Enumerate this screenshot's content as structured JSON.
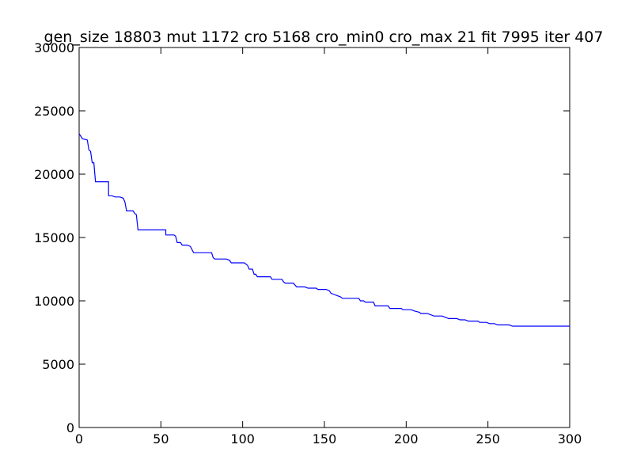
{
  "chart_data": {
    "type": "line",
    "title": "gen_size 18803 mut 1172 cro 5168 cro_min0 cro_max 21 fit 7995 iter 407",
    "xlabel": "",
    "ylabel": "",
    "xlim": [
      0,
      300
    ],
    "ylim": [
      0,
      30000
    ],
    "grid": false,
    "x_ticks": [
      "0",
      "50",
      "100",
      "150",
      "200",
      "250",
      "300"
    ],
    "y_ticks": [
      "0",
      "5000",
      "10000",
      "15000",
      "20000",
      "25000",
      "30000"
    ],
    "series": [
      {
        "color": "#0000ff",
        "step_points": [
          [
            0,
            23200
          ],
          [
            1,
            23000
          ],
          [
            2,
            22800
          ],
          [
            5,
            22700
          ],
          [
            6,
            21900
          ],
          [
            7,
            21800
          ],
          [
            8,
            20900
          ],
          [
            9,
            20900
          ],
          [
            10,
            19400
          ],
          [
            18,
            19400
          ],
          [
            18,
            18300
          ],
          [
            20,
            18300
          ],
          [
            22,
            18200
          ],
          [
            25,
            18200
          ],
          [
            27,
            18100
          ],
          [
            28,
            17800
          ],
          [
            29,
            17100
          ],
          [
            33,
            17100
          ],
          [
            34,
            16900
          ],
          [
            35,
            16800
          ],
          [
            36,
            15600
          ],
          [
            53,
            15600
          ],
          [
            53,
            15200
          ],
          [
            58,
            15200
          ],
          [
            59,
            15100
          ],
          [
            60,
            14600
          ],
          [
            62,
            14600
          ],
          [
            63,
            14400
          ],
          [
            66,
            14400
          ],
          [
            68,
            14300
          ],
          [
            70,
            13800
          ],
          [
            81,
            13800
          ],
          [
            82,
            13400
          ],
          [
            83,
            13300
          ],
          [
            90,
            13300
          ],
          [
            92,
            13200
          ],
          [
            93,
            13000
          ],
          [
            101,
            13000
          ],
          [
            102,
            12900
          ],
          [
            103,
            12800
          ],
          [
            104,
            12500
          ],
          [
            106,
            12500
          ],
          [
            107,
            12100
          ],
          [
            108,
            12100
          ],
          [
            109,
            11900
          ],
          [
            117,
            11900
          ],
          [
            118,
            11700
          ],
          [
            124,
            11700
          ],
          [
            125,
            11500
          ],
          [
            126,
            11400
          ],
          [
            131,
            11400
          ],
          [
            133,
            11100
          ],
          [
            138,
            11100
          ],
          [
            140,
            11000
          ],
          [
            145,
            11000
          ],
          [
            146,
            10900
          ],
          [
            151,
            10900
          ],
          [
            153,
            10800
          ],
          [
            154,
            10600
          ],
          [
            156,
            10500
          ],
          [
            158,
            10400
          ],
          [
            160,
            10300
          ],
          [
            161,
            10200
          ],
          [
            171,
            10200
          ],
          [
            172,
            10000
          ],
          [
            174,
            10000
          ],
          [
            175,
            9900
          ],
          [
            180,
            9900
          ],
          [
            181,
            9600
          ],
          [
            189,
            9600
          ],
          [
            190,
            9400
          ],
          [
            197,
            9400
          ],
          [
            198,
            9300
          ],
          [
            203,
            9300
          ],
          [
            205,
            9200
          ],
          [
            208,
            9100
          ],
          [
            209,
            9000
          ],
          [
            213,
            9000
          ],
          [
            215,
            8900
          ],
          [
            217,
            8800
          ],
          [
            222,
            8800
          ],
          [
            224,
            8700
          ],
          [
            226,
            8600
          ],
          [
            231,
            8600
          ],
          [
            233,
            8500
          ],
          [
            236,
            8500
          ],
          [
            238,
            8400
          ],
          [
            244,
            8400
          ],
          [
            245,
            8300
          ],
          [
            249,
            8300
          ],
          [
            251,
            8200
          ],
          [
            254,
            8200
          ],
          [
            256,
            8100
          ],
          [
            262,
            8100
          ],
          [
            263,
            8100
          ],
          [
            265,
            8000
          ],
          [
            267,
            8000
          ],
          [
            300,
            8000
          ]
        ]
      }
    ]
  }
}
